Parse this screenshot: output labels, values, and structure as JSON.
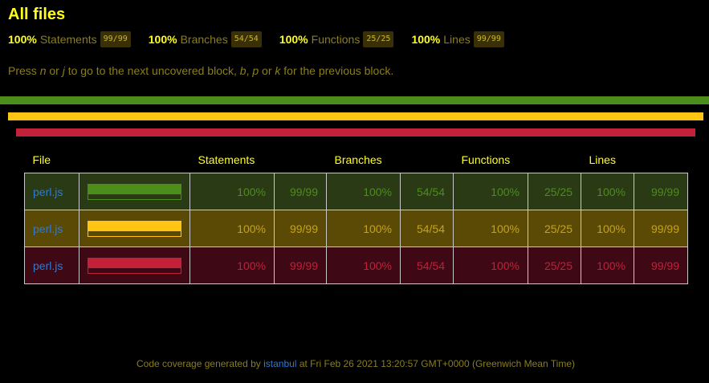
{
  "page": {
    "title": "All files",
    "hint_parts": [
      "Press ",
      "n",
      " or ",
      "j",
      " to go to the next uncovered block, ",
      "b",
      ", ",
      "p",
      " or ",
      "k",
      " for the previous block."
    ]
  },
  "summary": [
    {
      "pct": "100%",
      "label": "Statements",
      "fraction": "99/99"
    },
    {
      "pct": "100%",
      "label": "Branches",
      "fraction": "54/54"
    },
    {
      "pct": "100%",
      "label": "Functions",
      "fraction": "25/25"
    },
    {
      "pct": "100%",
      "label": "Lines",
      "fraction": "99/99"
    }
  ],
  "colors": {
    "high": "#4d8d1b",
    "medium": "#ffc414",
    "low": "#c3203a",
    "heading": "#ffff19",
    "link": "#2c7bd6"
  },
  "table": {
    "headers": {
      "file": "File",
      "statements": "Statements",
      "branches": "Branches",
      "functions": "Functions",
      "lines": "Lines"
    },
    "rows": [
      {
        "file": "perl.js",
        "coverage": 1.0,
        "statements_pct": "100%",
        "statements": "99/99",
        "branches_pct": "100%",
        "branches": "54/54",
        "functions_pct": "100%",
        "functions": "25/25",
        "lines_pct": "100%",
        "lines": "99/99"
      },
      {
        "file": "perl.js",
        "coverage": 1.0,
        "statements_pct": "100%",
        "statements": "99/99",
        "branches_pct": "100%",
        "branches": "54/54",
        "functions_pct": "100%",
        "functions": "25/25",
        "lines_pct": "100%",
        "lines": "99/99"
      },
      {
        "file": "perl.js",
        "coverage": 1.0,
        "statements_pct": "100%",
        "statements": "99/99",
        "branches_pct": "100%",
        "branches": "54/54",
        "functions_pct": "100%",
        "functions": "25/25",
        "lines_pct": "100%",
        "lines": "99/99"
      }
    ]
  },
  "footer": {
    "prefix": "Code coverage generated by ",
    "tool": "istanbul",
    "suffix": " at Fri Feb 26 2021 13:20:57 GMT+0000 (Greenwich Mean Time)"
  }
}
